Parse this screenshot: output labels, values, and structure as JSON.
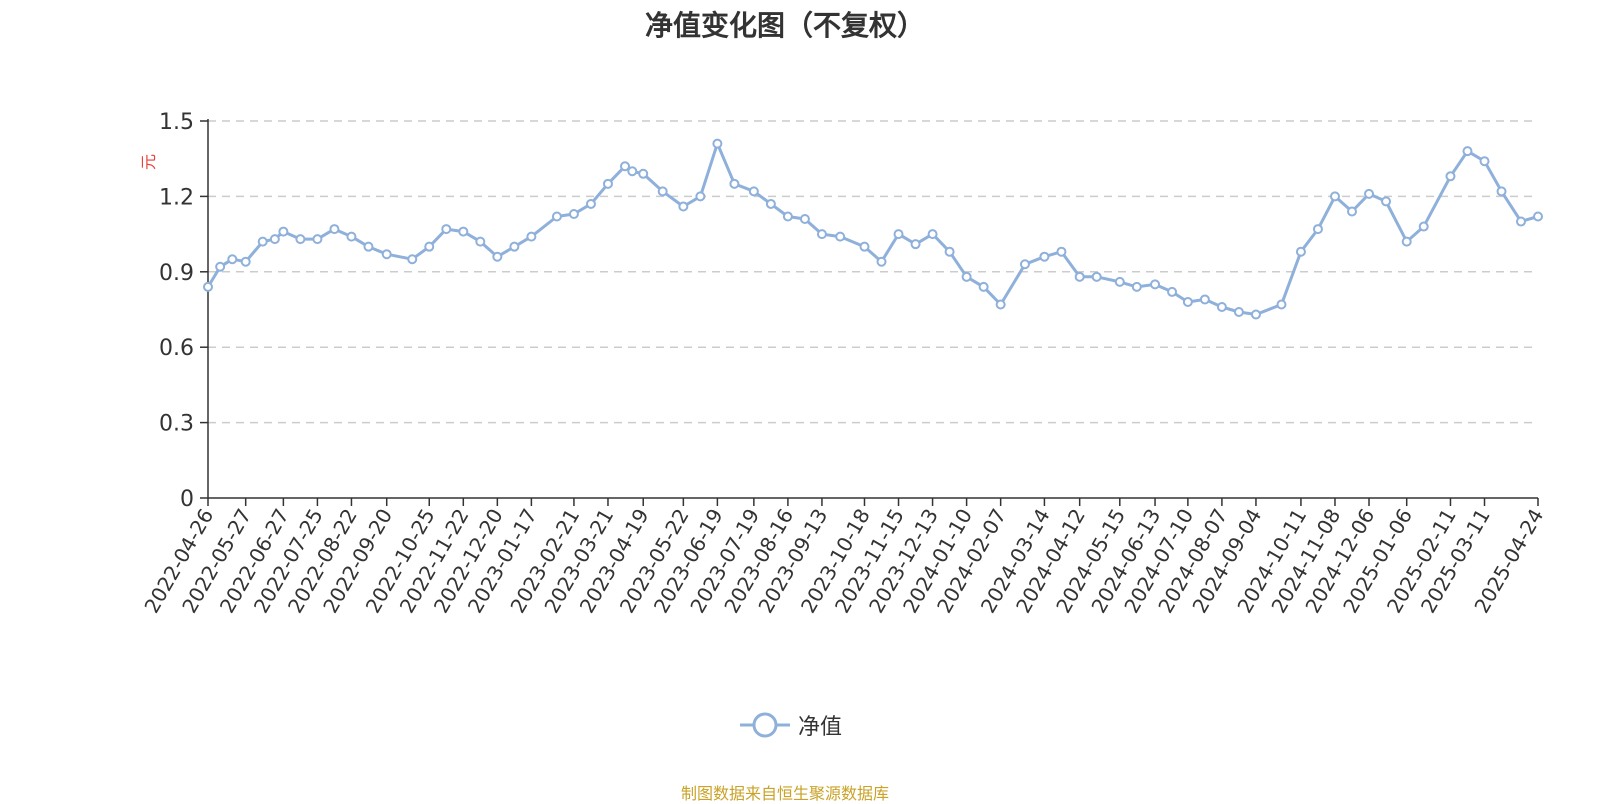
{
  "title": "净值变化图（不复权）",
  "source": "制图数据来自恒生聚源数据库",
  "legend": {
    "label": "净值"
  },
  "colors": {
    "line": "#8eb0da",
    "axis": "#333333",
    "grid": "#cccccc",
    "unit": "#e8403a",
    "source": "#c9a227",
    "marker_fill": "#ffffff"
  },
  "chart_data": {
    "type": "line",
    "title": "净值变化图（不复权）",
    "ylabel": "元",
    "ylim": [
      0,
      1.5
    ],
    "yticks": [
      0,
      0.3,
      0.6,
      0.9,
      1.2,
      1.5
    ],
    "ytick_labels": [
      "0",
      "0.3",
      "0.6",
      "0.9",
      "1.2",
      "1.5"
    ],
    "grid": true,
    "legend_position": "bottom",
    "x_tick_labels": [
      "2022-04-26",
      "2022-05-27",
      "2022-06-27",
      "2022-07-25",
      "2022-08-22",
      "2022-09-20",
      "2022-10-25",
      "2022-11-22",
      "2022-12-20",
      "2023-01-17",
      "2023-02-21",
      "2023-03-21",
      "2023-04-19",
      "2023-05-22",
      "2023-06-19",
      "2023-07-19",
      "2023-08-16",
      "2023-09-13",
      "2023-10-18",
      "2023-11-15",
      "2023-12-13",
      "2024-01-10",
      "2024-02-07",
      "2024-03-14",
      "2024-04-12",
      "2024-05-15",
      "2024-06-13",
      "2024-07-10",
      "2024-08-07",
      "2024-09-04",
      "2024-10-11",
      "2024-11-08",
      "2024-12-06",
      "2025-01-06",
      "2025-02-11",
      "2025-03-11",
      "2025-04-24"
    ],
    "series": [
      {
        "name": "净值",
        "x": [
          "2022-04-26",
          "2022-05-06",
          "2022-05-16",
          "2022-05-27",
          "2022-06-10",
          "2022-06-20",
          "2022-06-27",
          "2022-07-11",
          "2022-07-25",
          "2022-08-08",
          "2022-08-22",
          "2022-09-05",
          "2022-09-20",
          "2022-10-11",
          "2022-10-25",
          "2022-11-08",
          "2022-11-22",
          "2022-12-06",
          "2022-12-20",
          "2023-01-03",
          "2023-01-17",
          "2023-02-07",
          "2023-02-21",
          "2023-03-07",
          "2023-03-21",
          "2023-04-04",
          "2023-04-10",
          "2023-04-19",
          "2023-05-05",
          "2023-05-22",
          "2023-06-05",
          "2023-06-19",
          "2023-07-03",
          "2023-07-19",
          "2023-08-02",
          "2023-08-16",
          "2023-08-30",
          "2023-09-13",
          "2023-09-28",
          "2023-10-18",
          "2023-11-01",
          "2023-11-15",
          "2023-11-29",
          "2023-12-13",
          "2023-12-27",
          "2024-01-10",
          "2024-01-24",
          "2024-02-07",
          "2024-02-27",
          "2024-03-14",
          "2024-03-28",
          "2024-04-12",
          "2024-04-26",
          "2024-05-15",
          "2024-05-29",
          "2024-06-13",
          "2024-06-27",
          "2024-07-10",
          "2024-07-24",
          "2024-08-07",
          "2024-08-21",
          "2024-09-04",
          "2024-09-25",
          "2024-10-11",
          "2024-10-25",
          "2024-11-08",
          "2024-11-22",
          "2024-12-06",
          "2024-12-20",
          "2025-01-06",
          "2025-01-20",
          "2025-02-11",
          "2025-02-25",
          "2025-03-11",
          "2025-03-25",
          "2025-04-10",
          "2025-04-24"
        ],
        "values": [
          0.84,
          0.92,
          0.95,
          0.94,
          1.02,
          1.03,
          1.06,
          1.03,
          1.03,
          1.07,
          1.04,
          1.0,
          0.97,
          0.95,
          1.0,
          1.07,
          1.06,
          1.02,
          0.96,
          1.0,
          1.04,
          1.12,
          1.13,
          1.17,
          1.25,
          1.32,
          1.3,
          1.29,
          1.22,
          1.16,
          1.2,
          1.41,
          1.25,
          1.22,
          1.17,
          1.12,
          1.11,
          1.05,
          1.04,
          1.0,
          0.94,
          1.05,
          1.01,
          1.05,
          0.98,
          0.88,
          0.84,
          0.77,
          0.93,
          0.96,
          0.98,
          0.88,
          0.88,
          0.86,
          0.84,
          0.85,
          0.82,
          0.78,
          0.79,
          0.76,
          0.74,
          0.73,
          0.77,
          0.98,
          1.07,
          1.2,
          1.14,
          1.21,
          1.18,
          1.02,
          1.08,
          1.28,
          1.38,
          1.34,
          1.22,
          1.1,
          1.12
        ]
      }
    ]
  }
}
